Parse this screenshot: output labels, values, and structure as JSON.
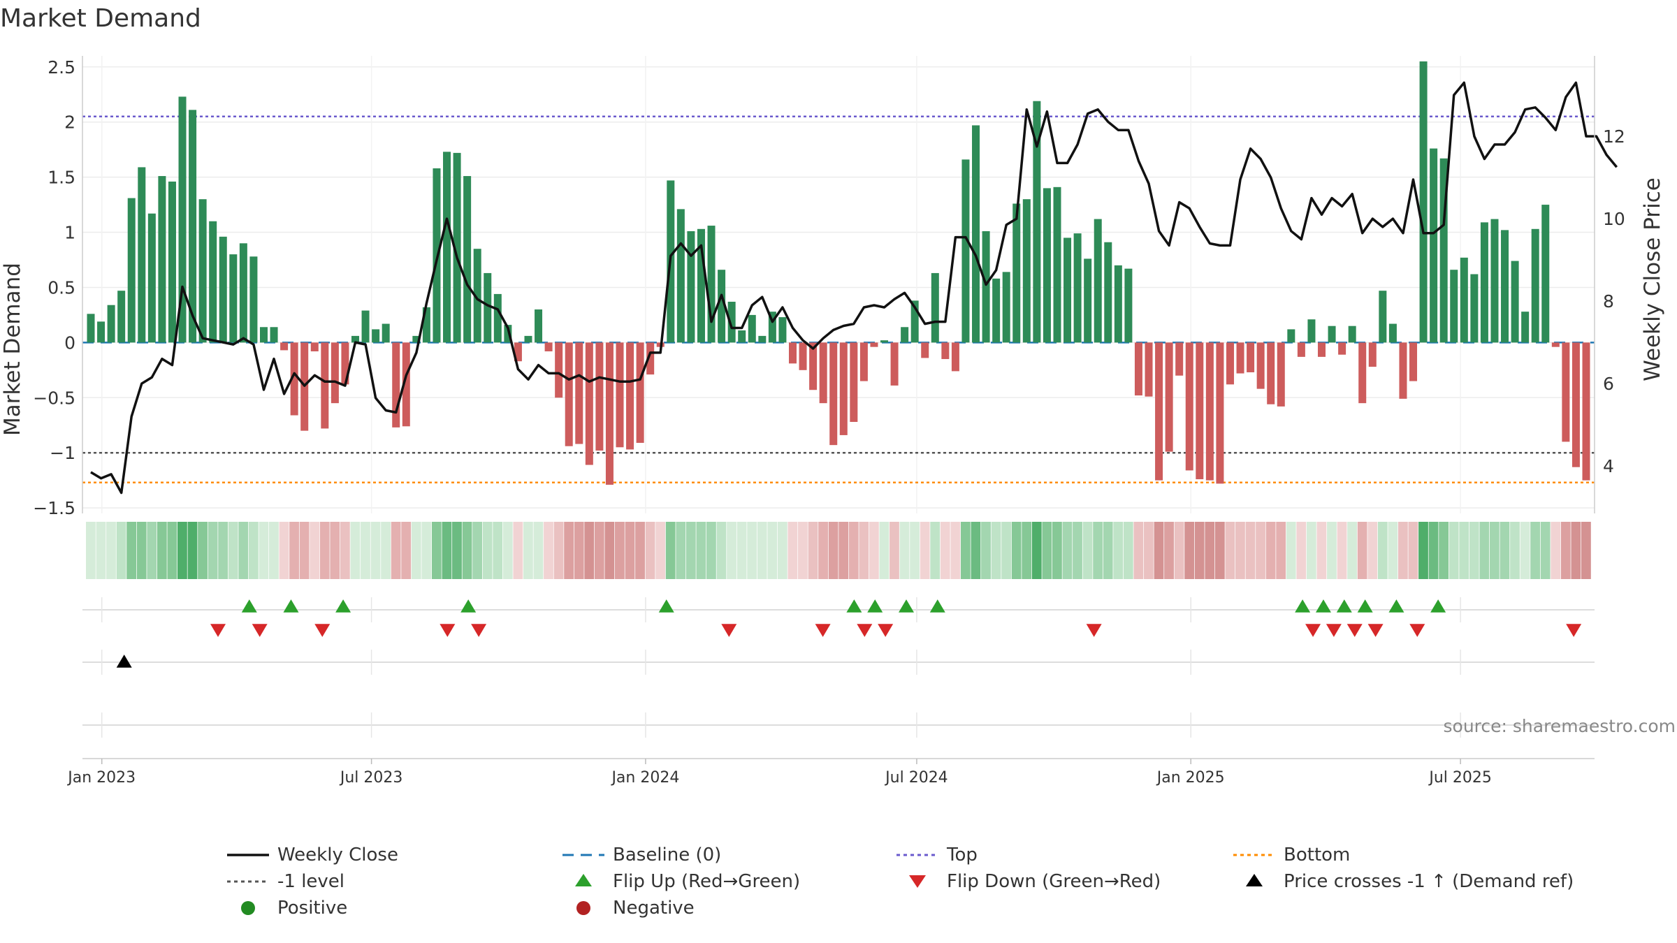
{
  "chart_data": {
    "type": "bar",
    "title": "Market Demand",
    "ylabel": "Market Demand",
    "y2label": "Weekly Close Price",
    "ylim": [
      -1.55,
      2.6
    ],
    "y2lim": [
      2.85,
      13.95
    ],
    "yticks": [
      2.5,
      2,
      1.5,
      1,
      0.5,
      0,
      -0.5,
      -1,
      -1.5
    ],
    "ytick_labels": [
      "2.5",
      "2",
      "1.5",
      "1",
      "0.5",
      "0",
      "−0.5",
      "−1",
      "−1.5"
    ],
    "y2ticks": [
      12,
      10,
      8,
      6,
      4
    ],
    "y2tick_labels": [
      "12",
      "10",
      "8",
      "6",
      "4"
    ],
    "x_start": "2022-12-19",
    "x_end": "2025-09-29",
    "xticks": [
      "2023-01-01",
      "2023-07-01",
      "2024-01-01",
      "2024-07-01",
      "2025-01-01",
      "2025-07-01"
    ],
    "xtick_labels": [
      "Jan 2023",
      "Jul 2023",
      "Jan 2024",
      "Jul 2024",
      "Jan 2025",
      "Jul 2025"
    ],
    "demand": [
      0.26,
      0.19,
      0.34,
      0.47,
      1.31,
      1.59,
      1.17,
      1.51,
      1.46,
      2.23,
      2.11,
      1.3,
      1.1,
      0.96,
      0.8,
      0.9,
      0.78,
      0.14,
      0.14,
      -0.07,
      -0.66,
      -0.8,
      -0.08,
      -0.78,
      -0.55,
      -0.38,
      0.06,
      0.29,
      0.12,
      0.17,
      -0.77,
      -0.76,
      0.06,
      0.32,
      1.58,
      1.73,
      1.72,
      1.51,
      0.85,
      0.63,
      0.44,
      0.16,
      -0.17,
      0.06,
      0.3,
      -0.08,
      -0.5,
      -0.94,
      -0.92,
      -1.11,
      -0.98,
      -1.29,
      -0.95,
      -0.97,
      -0.91,
      -0.29,
      -0.04,
      1.47,
      1.21,
      1.01,
      1.03,
      1.06,
      0.66,
      0.37,
      0.11,
      0.25,
      0.06,
      0.28,
      0.23,
      -0.19,
      -0.25,
      -0.43,
      -0.55,
      -0.93,
      -0.84,
      -0.72,
      -0.35,
      -0.04,
      0.02,
      -0.39,
      0.14,
      0.38,
      -0.14,
      0.63,
      -0.15,
      -0.26,
      1.66,
      1.97,
      1.01,
      0.58,
      0.64,
      1.26,
      1.3,
      2.19,
      1.4,
      1.41,
      0.95,
      0.99,
      0.76,
      1.12,
      0.91,
      0.7,
      0.67,
      -0.48,
      -0.49,
      -1.25,
      -0.99,
      -0.3,
      -1.16,
      -1.24,
      -1.25,
      -1.28,
      -0.38,
      -0.28,
      -0.27,
      -0.42,
      -0.56,
      -0.58,
      0.12,
      -0.13,
      0.21,
      -0.13,
      0.15,
      -0.11,
      0.15,
      -0.55,
      -0.22,
      0.47,
      0.17,
      -0.51,
      -0.35,
      2.55,
      1.76,
      1.67,
      0.66,
      0.77,
      0.62,
      1.09,
      1.12,
      1.02,
      0.74,
      0.28,
      1.03,
      1.25,
      -0.04,
      -0.9,
      -1.13,
      -1.25
    ],
    "close": [
      3.85,
      3.7,
      3.8,
      3.35,
      5.2,
      6.0,
      6.15,
      6.6,
      6.45,
      8.35,
      7.65,
      7.1,
      7.05,
      7.0,
      6.95,
      7.1,
      6.95,
      5.85,
      6.6,
      5.75,
      6.25,
      5.95,
      6.2,
      6.05,
      6.05,
      5.95,
      7.0,
      6.95,
      5.65,
      5.35,
      5.3,
      6.2,
      6.75,
      7.95,
      9.0,
      10.0,
      9.05,
      8.4,
      8.05,
      7.9,
      7.8,
      7.35,
      6.35,
      6.1,
      6.45,
      6.25,
      6.25,
      6.1,
      6.2,
      6.05,
      6.15,
      6.1,
      6.05,
      6.05,
      6.1,
      6.75,
      6.75,
      9.1,
      9.4,
      9.1,
      9.35,
      7.5,
      8.15,
      7.35,
      7.35,
      7.9,
      8.1,
      7.5,
      7.85,
      7.35,
      7.05,
      6.85,
      7.1,
      7.3,
      7.4,
      7.45,
      7.85,
      7.9,
      7.85,
      8.05,
      8.2,
      7.85,
      7.45,
      7.5,
      7.5,
      9.55,
      9.55,
      9.1,
      8.4,
      8.75,
      9.85,
      10.0,
      12.65,
      11.75,
      12.6,
      11.35,
      11.35,
      11.8,
      12.55,
      12.65,
      12.35,
      12.15,
      12.15,
      11.4,
      10.85,
      9.7,
      9.35,
      10.4,
      10.25,
      9.8,
      9.4,
      9.35,
      9.35,
      10.95,
      11.7,
      11.45,
      11.0,
      10.25,
      9.7,
      9.5,
      10.5,
      10.1,
      10.5,
      10.3,
      10.6,
      9.65,
      10.0,
      9.8,
      10.0,
      9.65,
      10.95,
      9.65,
      9.65,
      9.85,
      13.0,
      13.3,
      12.0,
      11.45,
      11.8,
      11.8,
      12.1,
      12.65,
      12.7,
      12.45,
      12.15,
      12.95,
      13.3,
      12.0,
      12.0,
      11.55,
      11.25
    ],
    "flip_up": [
      "2023-04-10",
      "2023-05-08",
      "2023-06-12",
      "2023-09-04",
      "2024-01-15",
      "2024-05-20",
      "2024-06-03",
      "2024-06-24",
      "2024-07-15",
      "2025-03-17",
      "2025-03-31",
      "2025-04-14",
      "2025-04-28",
      "2025-05-19",
      "2025-06-16"
    ],
    "flip_down": [
      "2023-03-20",
      "2023-04-17",
      "2023-05-29",
      "2023-08-21",
      "2023-09-11",
      "2024-02-26",
      "2024-04-29",
      "2024-05-27",
      "2024-06-10",
      "2024-10-28",
      "2025-03-24",
      "2025-04-07",
      "2025-04-21",
      "2025-05-05",
      "2025-06-02",
      "2025-09-15"
    ],
    "price_cross": [
      "2023-01-16"
    ],
    "top_level": 2.05,
    "bottom_level": -1.27,
    "minus_one_level": -1,
    "legend": [
      {
        "label": "Weekly Close",
        "marker": "line"
      },
      {
        "label": "Baseline (0)",
        "marker": "dash"
      },
      {
        "label": "Top",
        "marker": "dot"
      },
      {
        "label": "Bottom",
        "marker": "dot"
      },
      {
        "label": "-1 level",
        "marker": "dot"
      },
      {
        "label": "Flip Up (Red→Green)",
        "marker": "tri-up"
      },
      {
        "label": "Flip Down (Green→Red)",
        "marker": "tri-down"
      },
      {
        "label": "Price crosses -1 ↑ (Demand ref)",
        "marker": "tri-up"
      },
      {
        "label": "Positive",
        "marker": "circle"
      },
      {
        "label": "Negative",
        "marker": "circle"
      }
    ],
    "colors": {
      "positive": "#2e8b57",
      "negative": "#cd5c5c",
      "close": "#111111",
      "baseline": "#1f77b4",
      "top": "#6a5acd",
      "bottom": "#ff8c00",
      "minus_one": "#555555",
      "flip_up": "#2ca02c",
      "flip_down": "#d62728",
      "cross": "#000000",
      "legend_positive": "#228b22",
      "legend_negative": "#b22222"
    }
  },
  "source": "source: sharemaestro.com"
}
